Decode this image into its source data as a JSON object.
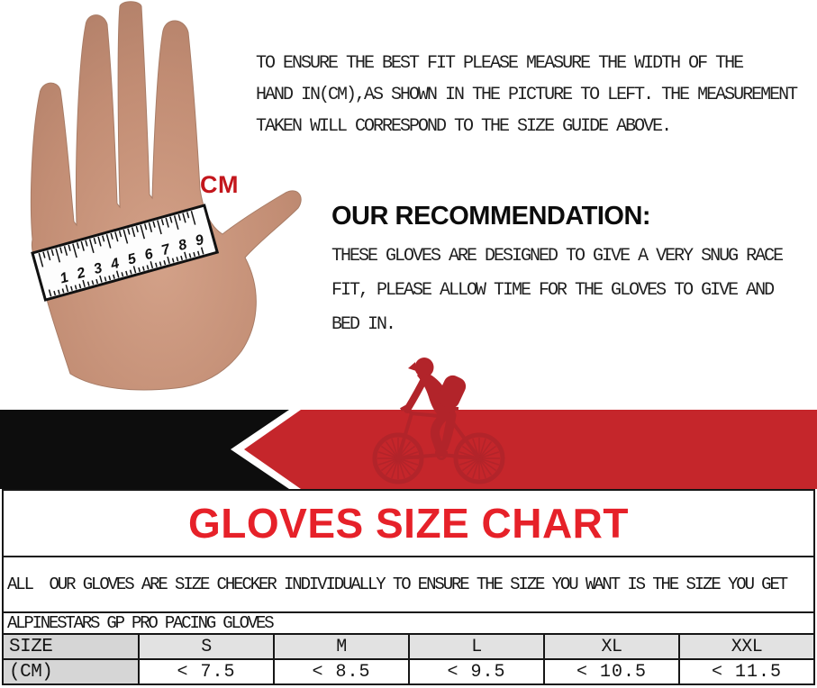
{
  "measure_guide": {
    "cm_label": "CM",
    "ruler_numbers": [
      "1",
      "2",
      "3",
      "4",
      "5",
      "6",
      "7",
      "8",
      "9"
    ],
    "instruction_lines": [
      "TO ENSURE THE BEST FIT PLEASE MEASURE THE WIDTH OF THE",
      "HAND IN(CM),AS SHOWN IN THE PICTURE TO LEFT. THE MEASUREMENT",
      "TAKEN WILL CORRESPOND TO THE SIZE GUIDE ABOVE."
    ],
    "recommendation_heading": "OUR RECOMMENDATION:",
    "recommendation_lines": [
      "THESE GLOVES ARE DESIGNED TO GIVE A VERY SNUG RACE",
      "FIT, PLEASE ALLOW TIME FOR THE GLOVES TO GIVE AND",
      "BED IN."
    ]
  },
  "banner": {
    "black_color": "#0d0d0d",
    "red_color": "#c5262b",
    "cyclist_color": "#b2242a"
  },
  "size_chart": {
    "title": "GLOVES SIZE CHART",
    "title_color": "#e62129",
    "note": "ALL  OUR GLOVES ARE SIZE CHECKER INDIVIDUALLY TO ENSURE THE SIZE YOU WANT IS THE SIZE YOU GET",
    "product_line": "ALPINESTARS GP PRO PACING GLOVES",
    "row_labels": [
      "SIZE",
      "(CM)"
    ],
    "columns": [
      "S",
      "M",
      "L",
      "XL",
      "XXL"
    ],
    "values": [
      "< 7.5",
      "< 8.5",
      "< 9.5",
      "< 10.5",
      "< 11.5"
    ]
  },
  "chart_data": {
    "type": "table",
    "title": "GLOVES SIZE CHART",
    "columns": [
      "SIZE",
      "S",
      "M",
      "L",
      "XL",
      "XXL"
    ],
    "rows": [
      [
        "(CM)",
        "< 7.5",
        "< 8.5",
        "< 9.5",
        "< 10.5",
        "< 11.5"
      ]
    ]
  }
}
